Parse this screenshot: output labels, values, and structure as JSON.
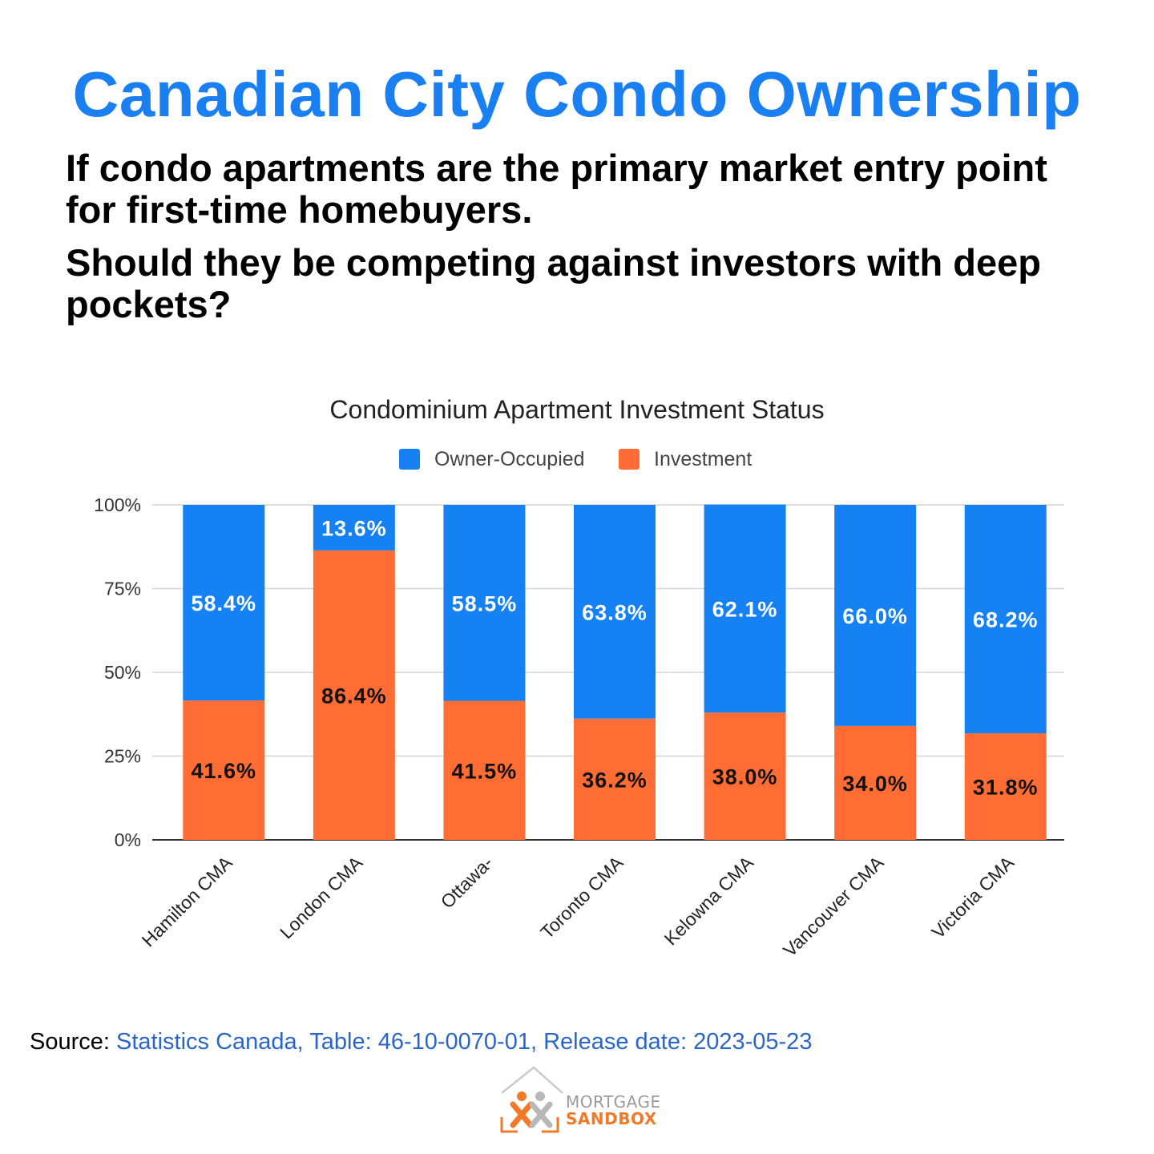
{
  "header": {
    "title": "Canadian City Condo Ownership",
    "question1": "If condo apartments are the primary market entry point for first-time homebuyers.",
    "question2": "Should they be competing against investors with deep pockets?"
  },
  "chart_data": {
    "type": "bar",
    "stacked": true,
    "title": "Condominium Apartment Investment Status",
    "xlabel": "",
    "ylabel": "",
    "ylim": [
      0,
      100
    ],
    "yticks": [
      "0%",
      "25%",
      "50%",
      "75%",
      "100%"
    ],
    "ytick_values": [
      0,
      25,
      50,
      75,
      100
    ],
    "legend_position": "top",
    "grid": true,
    "categories": [
      "Hamilton CMA",
      "London CMA",
      "Ottawa-",
      "Toronto CMA",
      "Kelowna CMA",
      "Vancouver CMA",
      "Victoria CMA"
    ],
    "series": [
      {
        "name": "Investment",
        "color": "#ff6d34",
        "values": [
          41.6,
          86.4,
          41.5,
          36.2,
          38.0,
          34.0,
          31.8
        ],
        "labels": [
          "41.6%",
          "86.4%",
          "41.5%",
          "36.2%",
          "38.0%",
          "34.0%",
          "31.8%"
        ]
      },
      {
        "name": "Owner-Occupied",
        "color": "#1581f3",
        "values": [
          58.4,
          13.6,
          58.5,
          63.8,
          62.1,
          66.0,
          68.2
        ],
        "labels": [
          "58.4%",
          "13.6%",
          "58.5%",
          "63.8%",
          "62.1%",
          "66.0%",
          "68.2%"
        ]
      }
    ],
    "legend": [
      {
        "name": "Owner-Occupied",
        "color": "#1581f3"
      },
      {
        "name": "Investment",
        "color": "#ff6d34"
      }
    ]
  },
  "footer": {
    "source_label": "Source:",
    "source_text": "Statistics Canada, Table: 46-10-0070-01, Release date: 2023-05-23",
    "logo_line1": "MORTGAGE",
    "logo_line2": "SANDBOX"
  }
}
